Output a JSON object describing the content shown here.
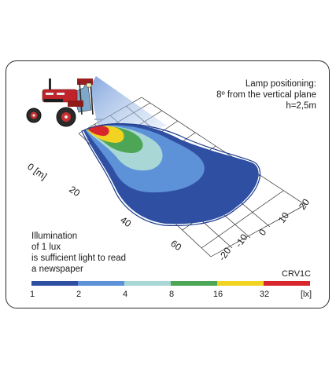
{
  "lamp_positioning": {
    "title": "Lamp positioning:",
    "angle": "8º from the vertical plane",
    "height": "h=2,5m"
  },
  "distance_axis": {
    "unit_label": "0 [m]",
    "ticks": [
      "20",
      "40",
      "60"
    ]
  },
  "lateral_axis": {
    "ticks": [
      "20",
      "10",
      "0",
      "-10",
      "-20"
    ]
  },
  "illumination_note": {
    "line1": "Illumination",
    "line2": "of 1 lux",
    "line3": "is sufficient light to read",
    "line4": "a newspaper"
  },
  "model": "CRV1C",
  "legend": {
    "labels": [
      "1",
      "2",
      "4",
      "8",
      "16",
      "32",
      "[lx]"
    ],
    "colors": [
      "#2f4fa3",
      "#5d92d8",
      "#a9d7d6",
      "#4da656",
      "#f2d322",
      "#d8262d"
    ]
  },
  "icons": [
    "tractor-icon"
  ]
}
